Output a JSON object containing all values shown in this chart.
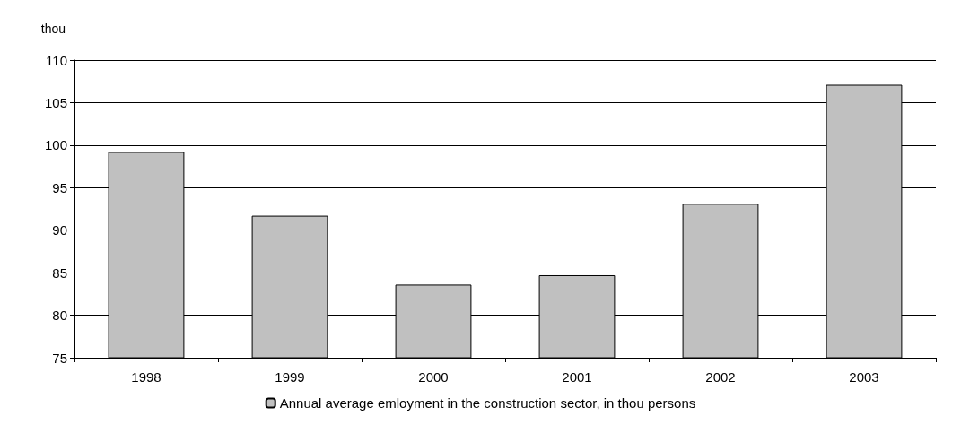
{
  "chart_data": {
    "type": "bar",
    "ylabel": "thou",
    "categories": [
      "1998",
      "1999",
      "2000",
      "2001",
      "2002",
      "2003"
    ],
    "series": [
      {
        "name": "Annual average emloyment in the construction sector, in thou persons",
        "color": "#c0c0c0",
        "values": [
          99.2,
          91.7,
          83.6,
          84.7,
          93.1,
          107.1
        ]
      }
    ],
    "ylim": [
      75,
      110
    ],
    "yticks": [
      75,
      80,
      85,
      90,
      95,
      100,
      105,
      110
    ],
    "grid": "y",
    "legend": "bottom"
  }
}
